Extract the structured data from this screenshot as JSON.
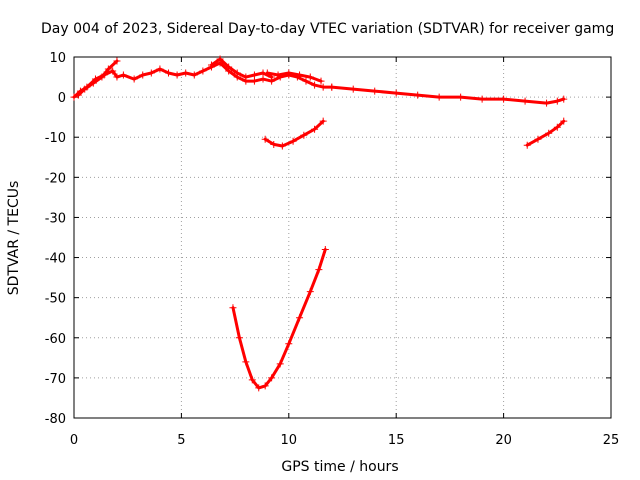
{
  "chart_data": {
    "type": "scatter",
    "title": "Day 004 of 2023, Sidereal Day-to-day VTEC variation (SDTVAR) for receiver gamg",
    "xlabel": "GPS time / hours",
    "ylabel": "SDTVAR / TECUs",
    "xlim": [
      0,
      25
    ],
    "ylim": [
      -80,
      10
    ],
    "xticks": [
      0,
      5,
      10,
      15,
      20,
      25
    ],
    "yticks": [
      10,
      0,
      -10,
      -20,
      -30,
      -40,
      -50,
      -60,
      -70,
      -80
    ],
    "grid": true,
    "legend": "none",
    "series_color": "#ff0000",
    "series": [
      {
        "x": [
          0,
          0.3,
          0.6,
          1.0,
          1.4,
          1.8,
          2.0,
          2.3,
          2.8,
          3.2,
          3.6,
          4.0,
          4.4,
          4.8,
          5.2,
          5.6,
          6.0,
          6.4,
          6.8,
          7.2,
          7.6,
          8.0,
          8.4,
          8.8,
          9.2,
          9.6,
          10.0,
          10.4,
          10.8,
          11.2,
          11.6,
          12.0
        ],
        "y": [
          0,
          1.5,
          2.5,
          4.5,
          5.5,
          6.5,
          5.0,
          5.5,
          4.5,
          5.5,
          6.0,
          7.0,
          6.0,
          5.5,
          6.0,
          5.5,
          6.5,
          7.5,
          8.5,
          6.5,
          5.0,
          4.0,
          4.0,
          4.5,
          4.0,
          5.0,
          5.5,
          5.0,
          4.0,
          3.0,
          2.5,
          2.5
        ]
      },
      {
        "x": [
          0.2,
          0.5,
          0.9,
          1.3,
          1.6,
          2.0
        ],
        "y": [
          0.5,
          2.0,
          3.5,
          5.0,
          7.0,
          9.0
        ]
      },
      {
        "x": [
          6.4,
          6.8,
          7.2,
          7.6,
          8.0,
          8.4,
          8.8,
          9.2
        ],
        "y": [
          8.0,
          9.5,
          7.5,
          6.0,
          5.0,
          5.5,
          6.0,
          5.0
        ]
      },
      {
        "x": [
          9.0,
          9.5,
          10.0,
          10.5,
          11.0,
          11.5
        ],
        "y": [
          6.0,
          5.5,
          6.0,
          5.5,
          5.0,
          4.0
        ]
      },
      {
        "x": [
          12.0,
          13.0,
          14.0,
          15.0,
          16.0,
          17.0,
          18.0,
          19.0,
          20.0,
          21.0,
          22.0,
          22.5,
          22.8
        ],
        "y": [
          2.5,
          2.0,
          1.5,
          1.0,
          0.5,
          0.0,
          0.0,
          -0.5,
          -0.5,
          -1.0,
          -1.5,
          -1.0,
          -0.5
        ]
      },
      {
        "x": [
          8.9,
          9.3,
          9.7,
          10.2,
          10.7,
          11.2,
          11.6
        ],
        "y": [
          -10.5,
          -11.8,
          -12.2,
          -11.0,
          -9.5,
          -8.0,
          -6.0
        ]
      },
      {
        "x": [
          21.1,
          21.6,
          22.1,
          22.5,
          22.8
        ],
        "y": [
          -12.0,
          -10.5,
          -9.0,
          -7.5,
          -6.0
        ]
      },
      {
        "x": [
          7.4,
          7.7,
          8.0,
          8.3,
          8.6,
          8.9,
          9.2,
          9.6,
          10.0,
          10.5,
          11.0,
          11.4,
          11.7
        ],
        "y": [
          -52.5,
          -60.0,
          -66.0,
          -70.5,
          -72.5,
          -72.0,
          -70.0,
          -66.5,
          -61.5,
          -55.0,
          -48.5,
          -43.0,
          -38.0
        ]
      }
    ]
  }
}
